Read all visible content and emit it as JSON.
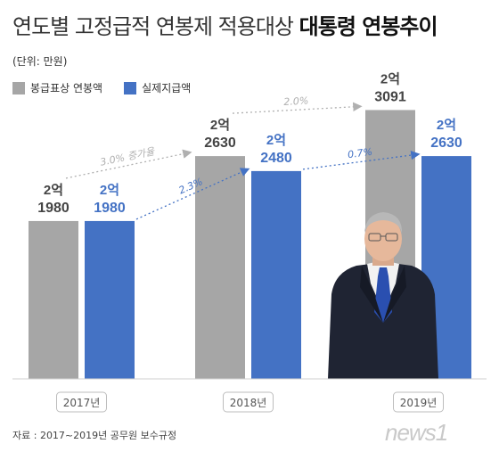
{
  "title": {
    "main": "연도별 고정급적 연봉제 적용대상",
    "emphasis": "대통령 연봉추이"
  },
  "unit": "(단위: 만원)",
  "legend": {
    "series1": "봉급표상 연봉액",
    "series2": "실제지급액"
  },
  "source": "자료 : 2017~2019년 공무원 보수규정",
  "logo": "news1",
  "colors": {
    "series1": "#a6a6a6",
    "series2": "#4472c4"
  },
  "chart_data": {
    "type": "bar",
    "categories": [
      "2017년",
      "2018년",
      "2019년"
    ],
    "series": [
      {
        "name": "봉급표상 연봉액",
        "values": [
          21980,
          22630,
          23091
        ],
        "labels": [
          [
            "2억",
            "1980"
          ],
          [
            "2억",
            "2630"
          ],
          [
            "2억",
            "3091"
          ]
        ]
      },
      {
        "name": "실제지급액",
        "values": [
          21980,
          22480,
          22630
        ],
        "labels": [
          [
            "2억",
            "1980"
          ],
          [
            "2억",
            "2480"
          ],
          [
            "2억",
            "2630"
          ]
        ]
      }
    ],
    "annotations": [
      {
        "series": 0,
        "from": 0,
        "to": 1,
        "text": "3.0% 증가율"
      },
      {
        "series": 0,
        "from": 1,
        "to": 2,
        "text": "2.0%"
      },
      {
        "series": 1,
        "from": 0,
        "to": 1,
        "text": "2.3%"
      },
      {
        "series": 1,
        "from": 1,
        "to": 2,
        "text": "0.7%"
      }
    ],
    "ylim": [
      20400,
      23300
    ],
    "xlabel": "",
    "ylabel": ""
  }
}
